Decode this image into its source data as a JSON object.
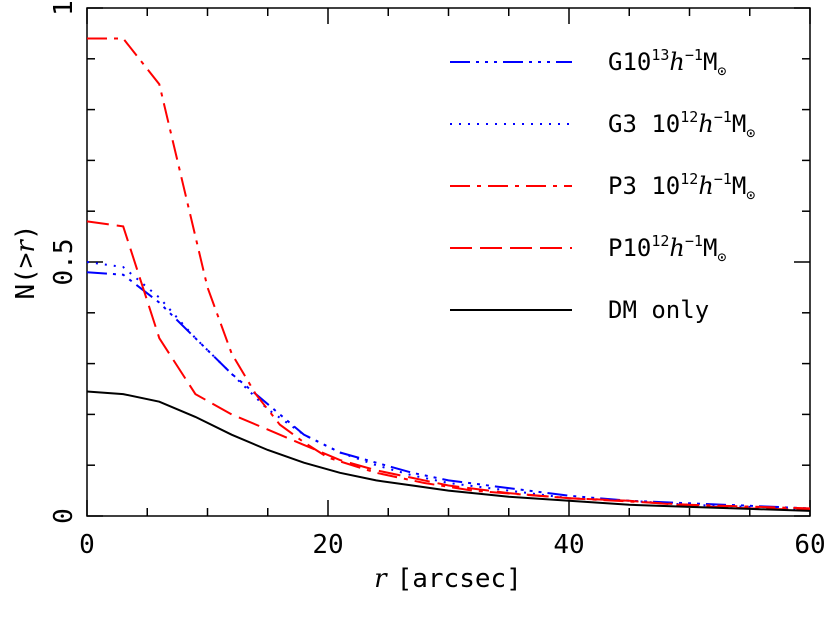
{
  "chart_data": {
    "type": "line",
    "xlabel_var": "r",
    "xlabel_unit": "[arcsec]",
    "ylabel_pre": "N(>",
    "ylabel_var": "r",
    "ylabel_post": ")",
    "xlim": [
      0,
      60
    ],
    "ylim": [
      0,
      1
    ],
    "xticks": [
      0,
      20,
      40,
      60
    ],
    "xtick_labels": [
      "0",
      "20",
      "40",
      "60"
    ],
    "yticks": [
      0,
      0.5,
      1
    ],
    "ytick_labels": [
      "0",
      "0.5",
      "1"
    ],
    "grid": false,
    "legend_position": "top-right",
    "series": [
      {
        "id": "g10",
        "legend": {
          "pre": "G10",
          "sup1": "13",
          "h": "h",
          "sup2": "−1",
          "m": "M",
          "sub": "⊙"
        },
        "color": "#0000ff",
        "dash": "20 6 3 6 3 6 3 6",
        "x": [
          0,
          3,
          6,
          9,
          12,
          15,
          18,
          21,
          24,
          27,
          30,
          35,
          40,
          45,
          50,
          55,
          60
        ],
        "y": [
          0.48,
          0.475,
          0.42,
          0.35,
          0.28,
          0.22,
          0.16,
          0.125,
          0.105,
          0.085,
          0.07,
          0.055,
          0.04,
          0.03,
          0.025,
          0.02,
          0.015
        ]
      },
      {
        "id": "g3",
        "legend": {
          "pre": "G3 10",
          "sup1": "12",
          "h": "h",
          "sup2": "−1",
          "m": "M",
          "sub": "⊙"
        },
        "color": "#0000ff",
        "dash": "2 7",
        "x": [
          0,
          3,
          6,
          9,
          12,
          15,
          18,
          21,
          24,
          27,
          30,
          35,
          40,
          45,
          50,
          55,
          60
        ],
        "y": [
          0.5,
          0.49,
          0.43,
          0.35,
          0.28,
          0.21,
          0.16,
          0.125,
          0.1,
          0.08,
          0.065,
          0.05,
          0.035,
          0.03,
          0.022,
          0.018,
          0.013
        ]
      },
      {
        "id": "p3",
        "legend": {
          "pre": "P3 10",
          "sup1": "12",
          "h": "h",
          "sup2": "−1",
          "m": "M",
          "sub": "⊙"
        },
        "color": "#ff0000",
        "dash": "20 7 4 7",
        "x": [
          0,
          3,
          6,
          8,
          10,
          12,
          14,
          16,
          18,
          20,
          24,
          28,
          32,
          40,
          50,
          60
        ],
        "y": [
          0.94,
          0.94,
          0.85,
          0.65,
          0.45,
          0.32,
          0.24,
          0.18,
          0.145,
          0.115,
          0.085,
          0.065,
          0.05,
          0.035,
          0.022,
          0.015
        ]
      },
      {
        "id": "p10",
        "legend": {
          "pre": "P10",
          "sup1": "12",
          "h": "h",
          "sup2": "−1",
          "m": "M",
          "sub": "⊙"
        },
        "color": "#ff0000",
        "dash": "22 8",
        "x": [
          0,
          3,
          6,
          9,
          12,
          15,
          18,
          21,
          24,
          27,
          30,
          35,
          40,
          45,
          50,
          55,
          60
        ],
        "y": [
          0.58,
          0.57,
          0.35,
          0.24,
          0.2,
          0.17,
          0.14,
          0.11,
          0.09,
          0.075,
          0.06,
          0.045,
          0.035,
          0.03,
          0.02,
          0.015,
          0.012
        ]
      },
      {
        "id": "dm",
        "legend": {
          "pre": "DM only",
          "sup1": "",
          "h": "",
          "sup2": "",
          "m": "",
          "sub": ""
        },
        "color": "#000000",
        "dash": "",
        "x": [
          0,
          3,
          6,
          9,
          12,
          15,
          18,
          21,
          24,
          27,
          30,
          35,
          40,
          45,
          50,
          55,
          60
        ],
        "y": [
          0.245,
          0.24,
          0.225,
          0.195,
          0.16,
          0.13,
          0.105,
          0.085,
          0.07,
          0.06,
          0.05,
          0.038,
          0.03,
          0.022,
          0.018,
          0.014,
          0.01
        ]
      }
    ]
  }
}
